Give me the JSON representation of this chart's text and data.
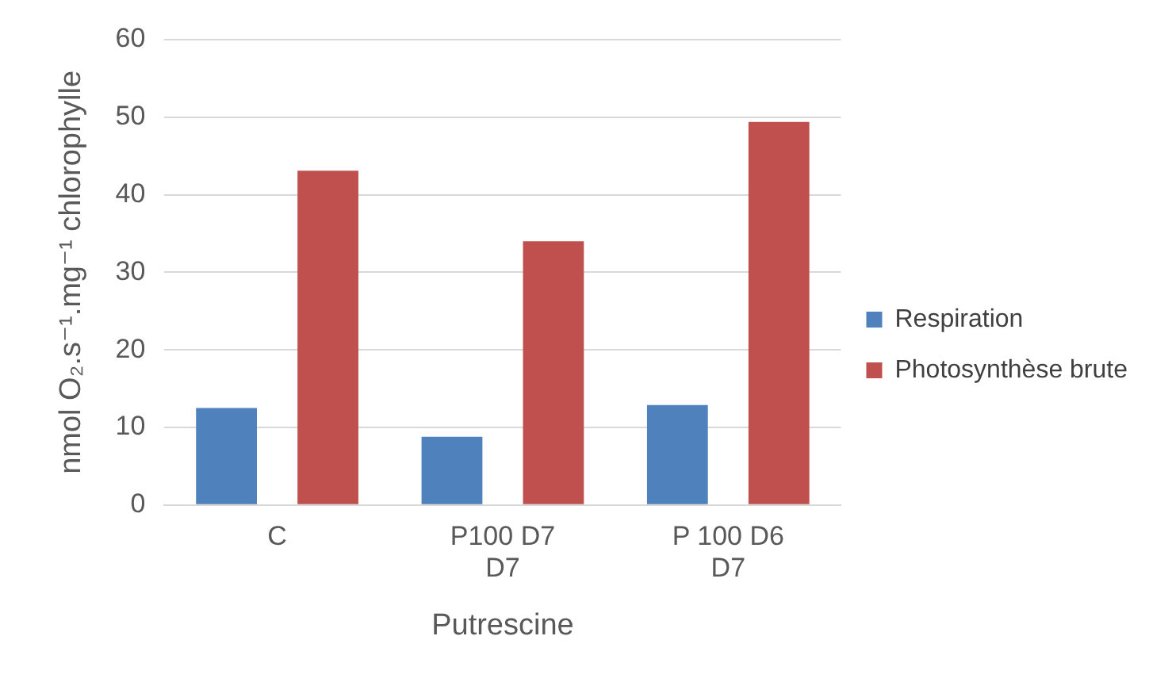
{
  "chart_data": {
    "type": "bar",
    "xlabel": "Putrescine",
    "ylabel": "nmol O₂.s⁻¹.mg⁻¹ chlorophylle",
    "categories": [
      "C",
      "P100 D7 D7",
      "P 100 D6 D7"
    ],
    "series": [
      {
        "name": "Respiration",
        "color": "#4f81bd",
        "values": [
          12.5,
          8.8,
          12.9
        ]
      },
      {
        "name": "Photosynthèse brute",
        "color": "#c0504d",
        "values": [
          43.1,
          34,
          49.4
        ]
      }
    ],
    "ylim": [
      0,
      60
    ],
    "yticks": [
      0,
      10,
      20,
      30,
      40,
      50,
      60
    ],
    "grid": "y",
    "legend": "right"
  }
}
